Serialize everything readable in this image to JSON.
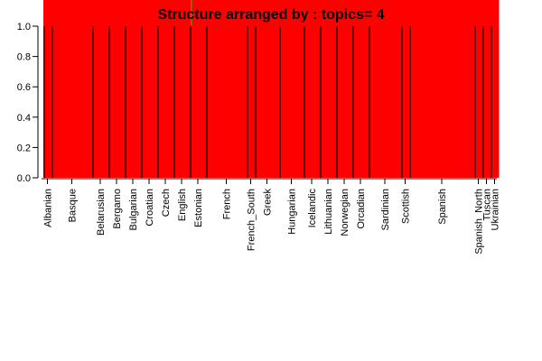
{
  "chart_data": {
    "type": "bar",
    "title": "Structure arranged by  : topics= 4",
    "xlabel": "",
    "ylabel": "",
    "ylim": [
      0,
      1
    ],
    "yticks": [
      "0.0",
      "0.2",
      "0.4",
      "0.6",
      "0.8",
      "1.0"
    ],
    "stacked": true,
    "colors": {
      "topic_1": "#ff0000",
      "topic_marker": "#4a9a00",
      "separator": "#000000"
    },
    "groups": [
      "Albanian",
      "Basque",
      "Belarusian",
      "Bergamo",
      "Bulgarian",
      "Croatian",
      "Czech",
      "English",
      "Estonian",
      "French",
      "French_South",
      "Greek",
      "Hungarian",
      "Icelandic",
      "Lithuanian",
      "Norwegian",
      "Orcadian",
      "Sardinian",
      "Scottish",
      "Spanish",
      "Spanish_North",
      "Tuscan",
      "Ukrainian"
    ],
    "group_sizes": [
      1,
      5,
      2,
      2,
      2,
      2,
      2,
      2,
      2,
      5,
      1,
      3,
      3,
      2,
      2,
      2,
      2,
      4,
      1,
      8,
      1,
      1,
      1
    ],
    "series": [
      {
        "values": [
          1,
          1,
          1,
          1,
          1,
          1,
          1,
          1,
          1,
          1,
          1,
          1,
          1,
          1,
          1,
          1,
          1,
          1,
          1,
          1,
          1,
          1,
          1
        ]
      }
    ]
  }
}
